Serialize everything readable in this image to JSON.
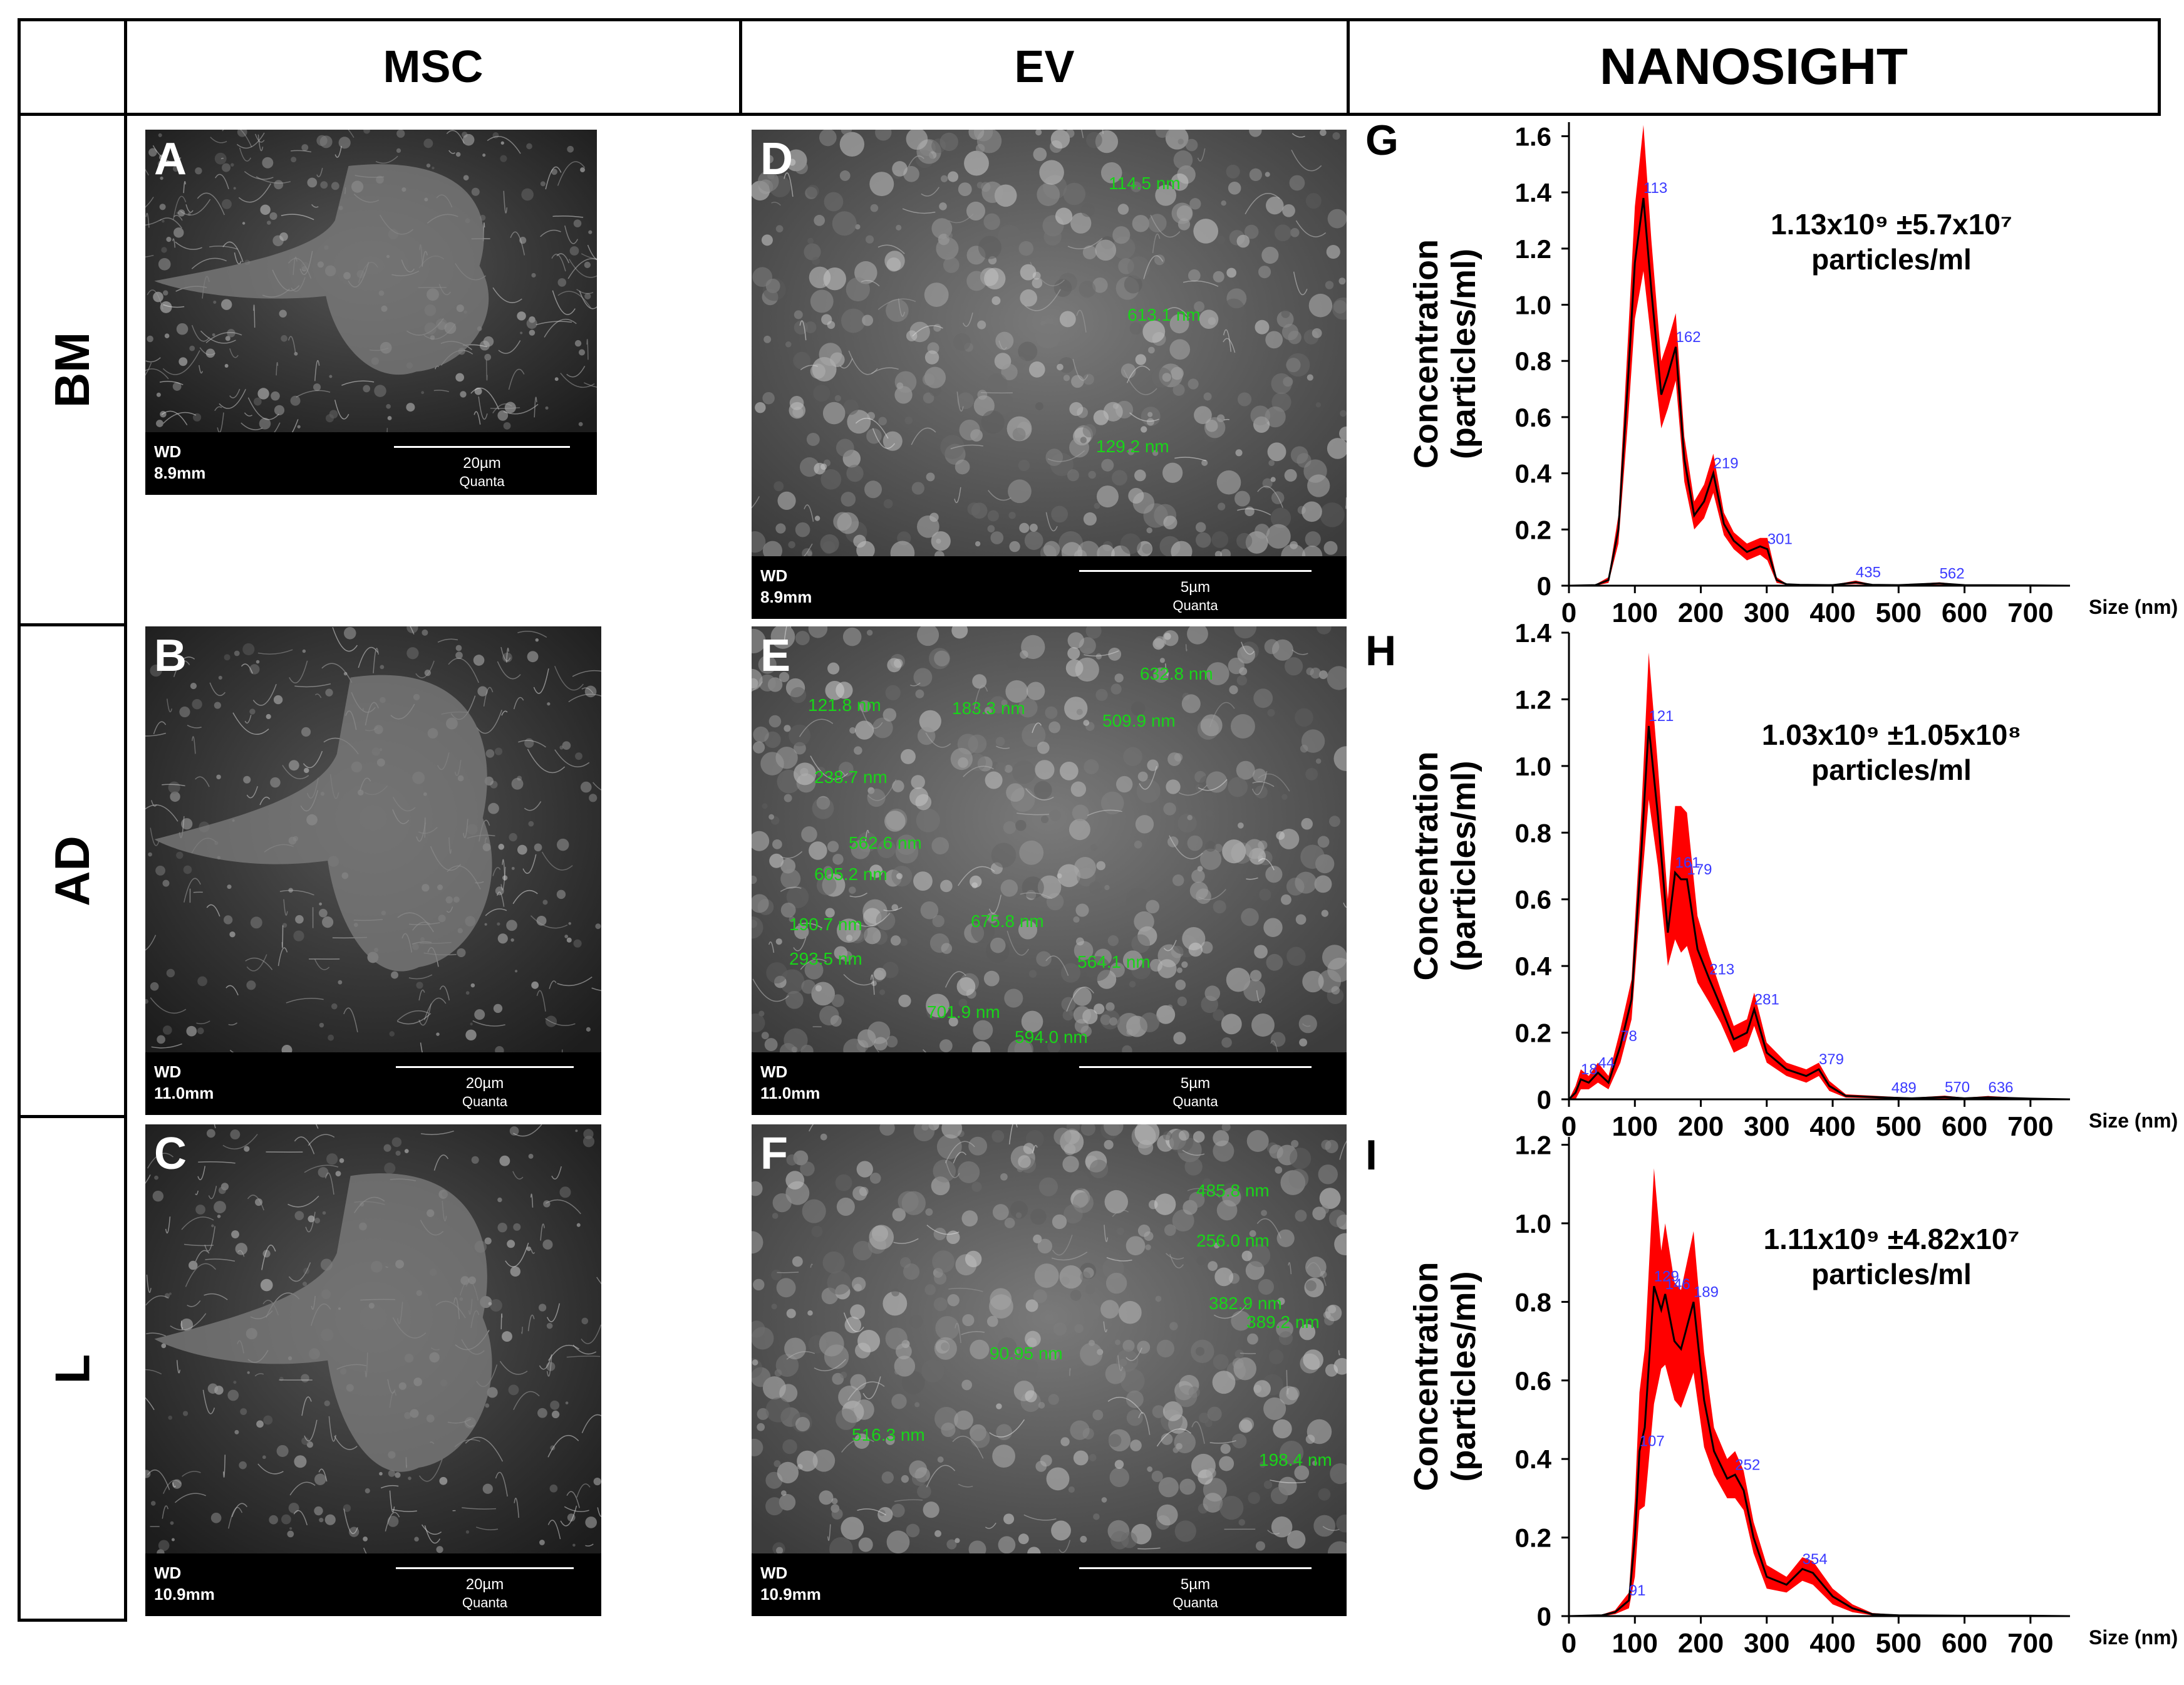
{
  "header": {
    "col_msc": "MSC",
    "col_ev": "EV",
    "col_nanosight": "NANOSIGHT"
  },
  "rows": [
    {
      "label": "BM",
      "msc": {
        "letter": "A",
        "wd_label": "WD",
        "wd_value": "8.9mm",
        "scale": "20µm",
        "device": "Quanta"
      },
      "ev": {
        "letter": "D",
        "wd_label": "WD",
        "wd_value": "8.9mm",
        "scale": "5µm",
        "device": "Quanta",
        "measurements": [
          "114.5 nm",
          "613.1 nm",
          "129.2 nm"
        ]
      },
      "nanosight": {
        "letter": "G",
        "concentration_line1": "1.13x10⁹ ±5.7x10⁷",
        "concentration_line2": "particles/ml"
      }
    },
    {
      "label": "AD",
      "msc": {
        "letter": "B",
        "wd_label": "WD",
        "wd_value": "11.0mm",
        "scale": "20µm",
        "device": "Quanta"
      },
      "ev": {
        "letter": "E",
        "wd_label": "WD",
        "wd_value": "11.0mm",
        "scale": "5µm",
        "device": "Quanta",
        "measurements": [
          "121.8 nm",
          "183.3 nm",
          "632.8 nm",
          "509.9 nm",
          "238.7 nm",
          "562.6 nm",
          "605.2 nm",
          "190.7 nm",
          "675.8 nm",
          "293.5 nm",
          "564.1 nm",
          "701.9 nm",
          "594.0 nm"
        ]
      },
      "nanosight": {
        "letter": "H",
        "concentration_line1": "1.03x10⁹ ±1.05x10⁸",
        "concentration_line2": "particles/ml"
      }
    },
    {
      "label": "L",
      "msc": {
        "letter": "C",
        "wd_label": "WD",
        "wd_value": "10.9mm",
        "scale": "20µm",
        "device": "Quanta"
      },
      "ev": {
        "letter": "F",
        "wd_label": "WD",
        "wd_value": "10.9mm",
        "scale": "5µm",
        "device": "Quanta",
        "measurements": [
          "485.8 nm",
          "256.0 nm",
          "382.9 nm",
          "389.2 nm",
          "90.95 nm",
          "516.3 nm",
          "198.4 nm"
        ]
      },
      "nanosight": {
        "letter": "I",
        "concentration_line1": "1.11x10⁹ ±4.82x10⁷",
        "concentration_line2": "particles/ml"
      }
    }
  ],
  "colors": {
    "trace": "#000000",
    "band": "#ff0000",
    "peak_label": "#3a3aff",
    "measure": "#19d419"
  },
  "chart_data": [
    {
      "type": "line",
      "ylabel_line1": "Concentration",
      "ylabel_line2": "(particles/ml)",
      "xlabel": "Size (nm)",
      "xlim": [
        0,
        760
      ],
      "ylim": [
        0,
        1.65
      ],
      "xticks": [
        0,
        100,
        200,
        300,
        400,
        500,
        600,
        700
      ],
      "yticks": [
        0,
        0.2,
        0.4,
        0.6,
        0.8,
        1.0,
        1.2,
        1.4,
        1.6
      ],
      "ytick_labels": [
        "0",
        "0.2",
        "0.4",
        "0.6",
        "0.8",
        "1.0",
        "1.2",
        "1.4",
        "1.6"
      ],
      "x": [
        0,
        40,
        60,
        75,
        90,
        100,
        113,
        125,
        140,
        150,
        162,
        175,
        190,
        205,
        219,
        235,
        250,
        270,
        290,
        301,
        315,
        330,
        350,
        400,
        435,
        460,
        500,
        562,
        600,
        700,
        760
      ],
      "y": [
        0,
        0.002,
        0.02,
        0.2,
        0.75,
        1.15,
        1.38,
        1.05,
        0.68,
        0.75,
        0.85,
        0.45,
        0.25,
        0.3,
        0.4,
        0.22,
        0.16,
        0.12,
        0.14,
        0.13,
        0.02,
        0.005,
        0.003,
        0.002,
        0.012,
        0.003,
        0.002,
        0.008,
        0.002,
        0.001,
        0
      ],
      "band": [
        0,
        0.002,
        0.01,
        0.05,
        0.15,
        0.2,
        0.26,
        0.18,
        0.12,
        0.12,
        0.12,
        0.08,
        0.05,
        0.06,
        0.07,
        0.04,
        0.03,
        0.03,
        0.03,
        0.04,
        0.01,
        0.002,
        0.002,
        0.001,
        0.006,
        0.002,
        0.001,
        0.004,
        0.001,
        0.001,
        0
      ],
      "peaks": [
        {
          "x": 113,
          "label": "113"
        },
        {
          "x": 162,
          "label": "162"
        },
        {
          "x": 219,
          "label": "219"
        },
        {
          "x": 301,
          "label": "301"
        },
        {
          "x": 435,
          "label": "435"
        },
        {
          "x": 562,
          "label": "562"
        }
      ]
    },
    {
      "type": "line",
      "ylabel_line1": "Concentration",
      "ylabel_line2": "(particles/ml)",
      "xlabel": "Size (nm)",
      "xlim": [
        0,
        760
      ],
      "ylim": [
        0,
        1.4
      ],
      "xticks": [
        0,
        100,
        200,
        300,
        400,
        500,
        600,
        700
      ],
      "yticks": [
        0,
        0.2,
        0.4,
        0.6,
        0.8,
        1.0,
        1.2,
        1.4
      ],
      "ytick_labels": [
        "0",
        "0.2",
        "0.4",
        "0.6",
        "0.8",
        "1.0",
        "1.2",
        "1.4"
      ],
      "x": [
        0,
        10,
        18,
        30,
        44,
        60,
        78,
        95,
        110,
        121,
        135,
        150,
        161,
        170,
        179,
        195,
        213,
        230,
        250,
        270,
        281,
        300,
        330,
        360,
        379,
        395,
        420,
        489,
        520,
        570,
        600,
        636,
        700,
        760
      ],
      "y": [
        0,
        0.02,
        0.06,
        0.05,
        0.08,
        0.05,
        0.16,
        0.3,
        0.75,
        1.12,
        0.85,
        0.5,
        0.68,
        0.66,
        0.66,
        0.45,
        0.36,
        0.28,
        0.18,
        0.2,
        0.27,
        0.14,
        0.09,
        0.07,
        0.09,
        0.04,
        0.01,
        0.005,
        0.003,
        0.007,
        0.003,
        0.006,
        0.002,
        0
      ],
      "band": [
        0,
        0.02,
        0.03,
        0.02,
        0.03,
        0.02,
        0.05,
        0.06,
        0.12,
        0.22,
        0.15,
        0.1,
        0.2,
        0.22,
        0.2,
        0.1,
        0.07,
        0.05,
        0.04,
        0.04,
        0.05,
        0.03,
        0.02,
        0.02,
        0.02,
        0.015,
        0.005,
        0.003,
        0.002,
        0.004,
        0.002,
        0.004,
        0.001,
        0
      ],
      "peaks": [
        {
          "x": 18,
          "label": "18"
        },
        {
          "x": 44,
          "label": "44"
        },
        {
          "x": 78,
          "label": "78"
        },
        {
          "x": 121,
          "label": "121"
        },
        {
          "x": 161,
          "label": "161"
        },
        {
          "x": 179,
          "label": "179"
        },
        {
          "x": 213,
          "label": "213"
        },
        {
          "x": 281,
          "label": "281"
        },
        {
          "x": 379,
          "label": "379"
        },
        {
          "x": 489,
          "label": "489"
        },
        {
          "x": 570,
          "label": "570"
        },
        {
          "x": 636,
          "label": "636"
        }
      ]
    },
    {
      "type": "line",
      "ylabel_line1": "Concentration",
      "ylabel_line2": "(particles/ml)",
      "xlabel": "Size (nm)",
      "xlim": [
        0,
        760
      ],
      "ylim": [
        0,
        1.22
      ],
      "xticks": [
        0,
        100,
        200,
        300,
        400,
        500,
        600,
        700
      ],
      "yticks": [
        0,
        0.2,
        0.4,
        0.6,
        0.8,
        1.0,
        1.2
      ],
      "ytick_labels": [
        "0",
        "0.2",
        "0.4",
        "0.6",
        "0.8",
        "1.0",
        "1.2"
      ],
      "x": [
        0,
        50,
        70,
        91,
        100,
        107,
        115,
        129,
        140,
        146,
        160,
        170,
        189,
        205,
        220,
        240,
        252,
        265,
        280,
        300,
        330,
        354,
        370,
        400,
        430,
        460,
        500,
        600,
        700,
        760
      ],
      "y": [
        0,
        0.002,
        0.01,
        0.04,
        0.2,
        0.42,
        0.48,
        0.84,
        0.78,
        0.82,
        0.7,
        0.68,
        0.8,
        0.55,
        0.42,
        0.35,
        0.36,
        0.32,
        0.2,
        0.1,
        0.08,
        0.12,
        0.11,
        0.05,
        0.02,
        0.005,
        0.002,
        0.001,
        0.001,
        0
      ],
      "band": [
        0,
        0.002,
        0.005,
        0.02,
        0.1,
        0.15,
        0.2,
        0.3,
        0.15,
        0.18,
        0.15,
        0.15,
        0.18,
        0.12,
        0.06,
        0.05,
        0.06,
        0.05,
        0.04,
        0.03,
        0.02,
        0.03,
        0.03,
        0.02,
        0.01,
        0.003,
        0.001,
        0.001,
        0.001,
        0
      ],
      "peaks": [
        {
          "x": 91,
          "label": "91"
        },
        {
          "x": 107,
          "label": "107"
        },
        {
          "x": 129,
          "label": "129"
        },
        {
          "x": 146,
          "label": "146"
        },
        {
          "x": 189,
          "label": "189"
        },
        {
          "x": 252,
          "label": "252"
        },
        {
          "x": 354,
          "label": "354"
        }
      ]
    }
  ]
}
